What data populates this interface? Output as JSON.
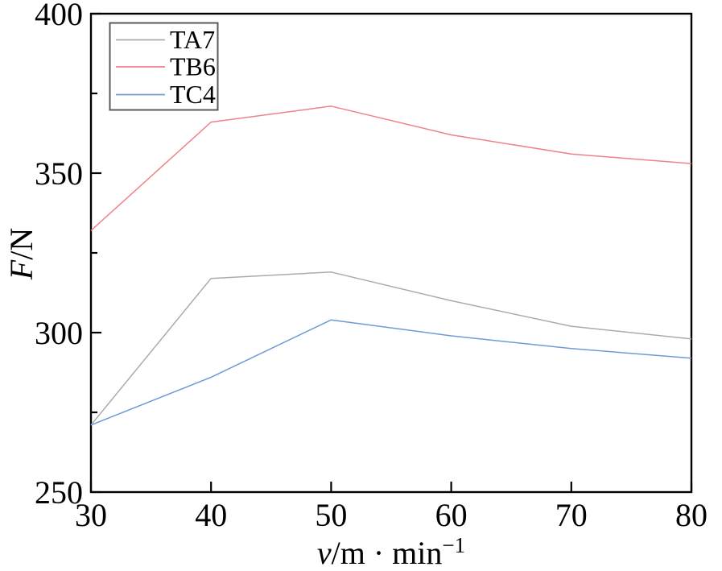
{
  "figure": {
    "background": "#ffffff",
    "axis_color": "#000000",
    "legend_border_color": "#5a5a5a"
  },
  "chart_data": {
    "type": "line",
    "title": "",
    "xlabel": {
      "italic": "v",
      "mid": "/m · min",
      "sup": "−1"
    },
    "ylabel": {
      "italic": "F",
      "rest": "/N"
    },
    "xlim": [
      30,
      80
    ],
    "ylim": [
      250,
      400
    ],
    "x": [
      30,
      40,
      50,
      60,
      70,
      80
    ],
    "xtick_labels": [
      "30",
      "40",
      "50",
      "60",
      "70",
      "80"
    ],
    "ytick_values": [
      250,
      300,
      350,
      400
    ],
    "ytick_labels": [
      "250",
      "300",
      "350",
      "400"
    ],
    "ytick_minor": [
      275,
      325,
      375
    ],
    "grid": false,
    "legend": {
      "position": "top-left",
      "border": true,
      "entries": [
        "TA7",
        "TB6",
        "TC4"
      ]
    },
    "series": [
      {
        "name": "TA7",
        "color": "#ababab",
        "values": [
          271,
          317,
          319,
          310,
          302,
          298
        ]
      },
      {
        "name": "TB6",
        "color": "#ee8287",
        "values": [
          332,
          366,
          371,
          362,
          356,
          353
        ]
      },
      {
        "name": "TC4",
        "color": "#6e9ad5",
        "values": [
          271,
          286,
          304,
          299,
          295,
          292
        ]
      }
    ]
  }
}
